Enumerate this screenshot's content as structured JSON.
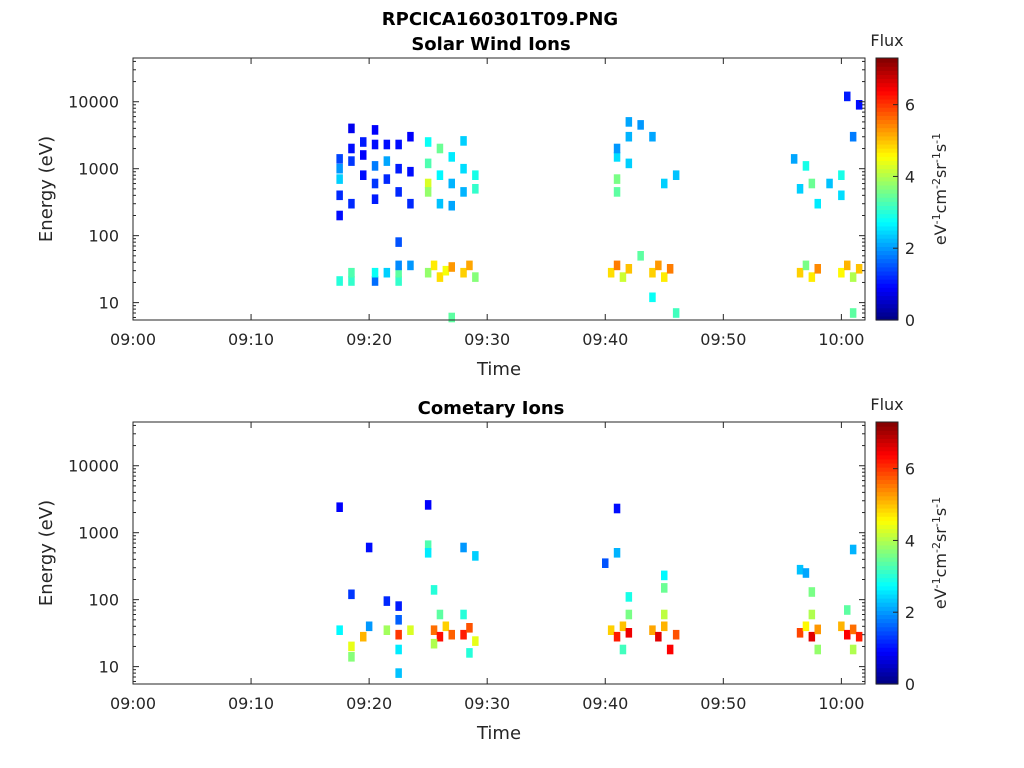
{
  "figure": {
    "filename": "RPCICA160301T09.PNG"
  },
  "chart_data": [
    {
      "type": "heatmap",
      "title": "Solar Wind Ions",
      "xlabel": "Time",
      "ylabel": "Energy (eV)",
      "x_axis": {
        "kind": "time",
        "range": [
          "09:00",
          "10:02"
        ],
        "ticks": [
          "09:00",
          "09:10",
          "09:20",
          "09:30",
          "09:40",
          "09:50",
          "10:00"
        ]
      },
      "y_axis": {
        "scale": "log",
        "range": [
          5.5,
          45000
        ],
        "ticks": [
          10,
          100,
          1000,
          10000
        ],
        "tick_labels": [
          "10",
          "100",
          "1000",
          "10000"
        ]
      },
      "colorbar": {
        "title": "Flux",
        "unit_label": "eV-1cm-2sr-1s-1",
        "range": [
          0,
          7.3
        ],
        "ticks": [
          0,
          2,
          4,
          6
        ],
        "colormap": "jet"
      },
      "cells": [
        [
          "09:17:30",
          1400,
          1.4
        ],
        [
          "09:17:30",
          1000,
          2.0
        ],
        [
          "09:17:30",
          700,
          2.4
        ],
        [
          "09:17:30",
          400,
          1.2
        ],
        [
          "09:17:30",
          200,
          1.0
        ],
        [
          "09:18:30",
          2000,
          1.0
        ],
        [
          "09:18:30",
          1300,
          1.3
        ],
        [
          "09:18:30",
          300,
          1.2
        ],
        [
          "09:18:30",
          4000,
          0.8
        ],
        [
          "09:19:30",
          2500,
          1.1
        ],
        [
          "09:19:30",
          1600,
          0.9
        ],
        [
          "09:19:30",
          800,
          1.0
        ],
        [
          "09:20:30",
          3800,
          0.9
        ],
        [
          "09:20:30",
          2300,
          1.0
        ],
        [
          "09:20:30",
          1100,
          1.8
        ],
        [
          "09:20:30",
          600,
          1.3
        ],
        [
          "09:20:30",
          350,
          1.1
        ],
        [
          "09:21:30",
          2300,
          1.0
        ],
        [
          "09:21:30",
          1300,
          2.1
        ],
        [
          "09:21:30",
          700,
          1.2
        ],
        [
          "09:22:30",
          2300,
          1.0
        ],
        [
          "09:22:30",
          1000,
          1.1
        ],
        [
          "09:22:30",
          450,
          1.2
        ],
        [
          "09:22:30",
          80,
          1.5
        ],
        [
          "09:23:30",
          3000,
          0.9
        ],
        [
          "09:23:30",
          900,
          1.0
        ],
        [
          "09:23:30",
          300,
          1.2
        ],
        [
          "09:25:00",
          2500,
          2.8
        ],
        [
          "09:25:00",
          1200,
          3.3
        ],
        [
          "09:25:00",
          600,
          4.3
        ],
        [
          "09:25:00",
          450,
          3.8
        ],
        [
          "09:26:00",
          2000,
          3.5
        ],
        [
          "09:26:00",
          800,
          2.7
        ],
        [
          "09:26:00",
          300,
          2.3
        ],
        [
          "09:27:00",
          1500,
          2.6
        ],
        [
          "09:27:00",
          600,
          2.2
        ],
        [
          "09:27:00",
          280,
          2.1
        ],
        [
          "09:28:00",
          2600,
          2.4
        ],
        [
          "09:28:00",
          1000,
          2.5
        ],
        [
          "09:28:00",
          450,
          2.2
        ],
        [
          "09:29:00",
          800,
          2.9
        ],
        [
          "09:29:00",
          500,
          3.1
        ],
        [
          "09:41:00",
          1500,
          2.5
        ],
        [
          "09:41:00",
          700,
          3.6
        ],
        [
          "09:41:00",
          450,
          3.4
        ],
        [
          "09:41:00",
          2000,
          2.0
        ],
        [
          "09:42:00",
          5000,
          2.1
        ],
        [
          "09:42:00",
          3000,
          2.2
        ],
        [
          "09:42:00",
          1200,
          2.4
        ],
        [
          "09:43:00",
          4500,
          2.0
        ],
        [
          "09:44:00",
          3000,
          2.1
        ],
        [
          "09:45:00",
          600,
          2.4
        ],
        [
          "09:46:00",
          800,
          2.3
        ],
        [
          "09:56:00",
          1400,
          2.1
        ],
        [
          "09:56:30",
          500,
          2.4
        ],
        [
          "09:57:00",
          1100,
          2.9
        ],
        [
          "09:57:30",
          600,
          3.5
        ],
        [
          "09:58:00",
          300,
          2.6
        ],
        [
          "09:59:00",
          600,
          2.3
        ],
        [
          "10:00:00",
          800,
          2.9
        ],
        [
          "10:00:00",
          400,
          2.5
        ],
        [
          "10:00:30",
          12000,
          1.1
        ],
        [
          "10:01:00",
          3000,
          1.8
        ],
        [
          "10:01:30",
          9000,
          1.0
        ],
        [
          "09:17:30",
          21,
          3.0
        ],
        [
          "09:18:30",
          21,
          3.1
        ],
        [
          "09:18:30",
          28,
          3.3
        ],
        [
          "09:20:30",
          21,
          1.7
        ],
        [
          "09:20:30",
          28,
          2.8
        ],
        [
          "09:21:30",
          28,
          2.4
        ],
        [
          "09:22:30",
          21,
          3.1
        ],
        [
          "09:22:30",
          28,
          3.4
        ],
        [
          "09:22:30",
          36,
          1.9
        ],
        [
          "09:23:30",
          36,
          2.0
        ],
        [
          "09:25:00",
          28,
          3.8
        ],
        [
          "09:25:30",
          36,
          4.7
        ],
        [
          "09:26:00",
          24,
          4.8
        ],
        [
          "09:26:30",
          30,
          4.5
        ],
        [
          "09:27:00",
          34,
          5.3
        ],
        [
          "09:28:00",
          28,
          4.9
        ],
        [
          "09:28:30",
          36,
          5.2
        ],
        [
          "09:29:00",
          24,
          3.7
        ],
        [
          "09:27:00",
          6,
          3.4
        ],
        [
          "09:40:30",
          28,
          4.8
        ],
        [
          "09:41:00",
          36,
          5.5
        ],
        [
          "09:41:30",
          24,
          4.2
        ],
        [
          "09:42:00",
          32,
          5.0
        ],
        [
          "09:43:00",
          50,
          3.4
        ],
        [
          "09:44:00",
          28,
          4.9
        ],
        [
          "09:44:30",
          36,
          5.3
        ],
        [
          "09:45:00",
          24,
          4.7
        ],
        [
          "09:45:30",
          32,
          5.5
        ],
        [
          "09:46:00",
          7,
          3.2
        ],
        [
          "09:44:00",
          12,
          2.8
        ],
        [
          "09:56:30",
          28,
          4.9
        ],
        [
          "09:57:00",
          36,
          3.6
        ],
        [
          "09:57:30",
          24,
          4.7
        ],
        [
          "09:58:00",
          32,
          5.4
        ],
        [
          "10:00:00",
          28,
          4.6
        ],
        [
          "10:00:30",
          36,
          5.1
        ],
        [
          "10:01:00",
          24,
          4.0
        ],
        [
          "10:01:30",
          32,
          5.0
        ],
        [
          "10:01:00",
          7,
          3.4
        ]
      ]
    },
    {
      "type": "heatmap",
      "title": "Cometary Ions",
      "xlabel": "Time",
      "ylabel": "Energy (eV)",
      "x_axis": {
        "kind": "time",
        "range": [
          "09:00",
          "10:02"
        ],
        "ticks": [
          "09:00",
          "09:10",
          "09:20",
          "09:30",
          "09:40",
          "09:50",
          "10:00"
        ]
      },
      "y_axis": {
        "scale": "log",
        "range": [
          5.5,
          45000
        ],
        "ticks": [
          10,
          100,
          1000,
          10000
        ],
        "tick_labels": [
          "10",
          "100",
          "1000",
          "10000"
        ]
      },
      "colorbar": {
        "title": "Flux",
        "unit_label": "eV-1cm-2sr-1s-1",
        "range": [
          0,
          7.3
        ],
        "ticks": [
          0,
          2,
          4,
          6
        ],
        "colormap": "jet"
      },
      "cells": [
        [
          "09:17:30",
          2400,
          0.9
        ],
        [
          "09:20:00",
          600,
          1.0
        ],
        [
          "09:18:30",
          120,
          1.3
        ],
        [
          "09:20:00",
          40,
          2.0
        ],
        [
          "09:18:30",
          14,
          3.7
        ],
        [
          "09:18:30",
          20,
          4.4
        ],
        [
          "09:17:30",
          35,
          2.7
        ],
        [
          "09:19:30",
          28,
          5.1
        ],
        [
          "09:21:30",
          35,
          3.9
        ],
        [
          "09:21:30",
          95,
          1.2
        ],
        [
          "09:22:30",
          80,
          1.1
        ],
        [
          "09:22:30",
          50,
          1.6
        ],
        [
          "09:22:30",
          30,
          6.0
        ],
        [
          "09:22:30",
          18,
          2.6
        ],
        [
          "09:22:30",
          8,
          2.3
        ],
        [
          "09:23:30",
          35,
          4.3
        ],
        [
          "09:25:00",
          2600,
          0.9
        ],
        [
          "09:25:00",
          650,
          3.3
        ],
        [
          "09:25:00",
          500,
          2.6
        ],
        [
          "09:25:30",
          140,
          3.0
        ],
        [
          "09:25:30",
          35,
          5.6
        ],
        [
          "09:26:00",
          28,
          6.3
        ],
        [
          "09:26:30",
          40,
          4.9
        ],
        [
          "09:25:30",
          22,
          4.0
        ],
        [
          "09:26:00",
          60,
          3.4
        ],
        [
          "09:27:00",
          30,
          5.7
        ],
        [
          "09:28:00",
          30,
          6.2
        ],
        [
          "09:28:30",
          38,
          5.8
        ],
        [
          "09:28:00",
          60,
          3.0
        ],
        [
          "09:29:00",
          24,
          4.4
        ],
        [
          "09:28:00",
          600,
          2.0
        ],
        [
          "09:29:00",
          450,
          2.4
        ],
        [
          "09:28:30",
          16,
          3.0
        ],
        [
          "09:41:00",
          2300,
          1.0
        ],
        [
          "09:41:00",
          500,
          2.2
        ],
        [
          "09:40:00",
          350,
          1.5
        ],
        [
          "09:40:30",
          35,
          4.9
        ],
        [
          "09:41:00",
          28,
          6.2
        ],
        [
          "09:41:30",
          40,
          5.0
        ],
        [
          "09:42:00",
          32,
          6.5
        ],
        [
          "09:42:00",
          60,
          3.6
        ],
        [
          "09:42:00",
          110,
          2.9
        ],
        [
          "09:41:30",
          18,
          3.2
        ],
        [
          "09:44:00",
          35,
          5.2
        ],
        [
          "09:44:30",
          28,
          6.6
        ],
        [
          "09:45:00",
          40,
          5.1
        ],
        [
          "09:45:00",
          60,
          4.1
        ],
        [
          "09:45:00",
          150,
          3.5
        ],
        [
          "09:45:00",
          230,
          2.7
        ],
        [
          "09:46:00",
          30,
          5.8
        ],
        [
          "09:45:30",
          18,
          6.4
        ],
        [
          "09:56:30",
          280,
          2.3
        ],
        [
          "09:57:00",
          250,
          2.1
        ],
        [
          "09:56:30",
          32,
          5.9
        ],
        [
          "09:57:00",
          40,
          4.6
        ],
        [
          "09:57:30",
          28,
          6.6
        ],
        [
          "09:58:00",
          36,
          5.3
        ],
        [
          "09:57:30",
          60,
          4.0
        ],
        [
          "09:57:30",
          130,
          3.6
        ],
        [
          "09:58:00",
          18,
          3.8
        ],
        [
          "10:00:00",
          40,
          5.1
        ],
        [
          "10:00:30",
          30,
          6.4
        ],
        [
          "10:01:00",
          36,
          5.6
        ],
        [
          "10:01:30",
          28,
          6.2
        ],
        [
          "10:00:30",
          70,
          3.4
        ],
        [
          "10:01:00",
          560,
          2.2
        ],
        [
          "10:01:00",
          18,
          4.0
        ]
      ]
    }
  ]
}
